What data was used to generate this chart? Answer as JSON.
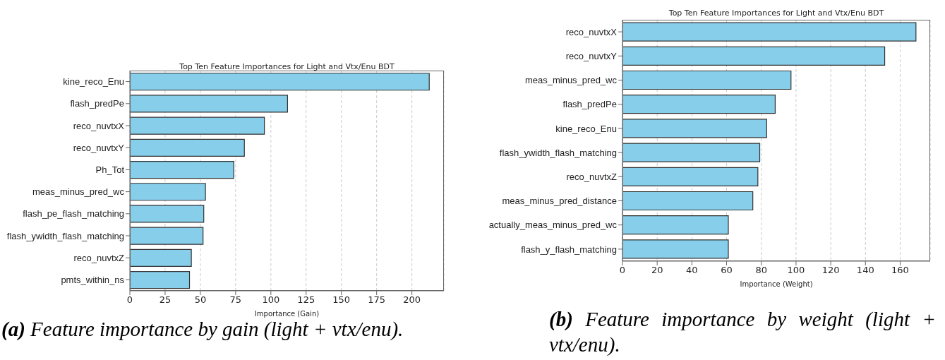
{
  "chart_data": [
    {
      "type": "bar",
      "orientation": "horizontal",
      "title": "Top Ten Feature Importances for Light and Vtx/Enu BDT",
      "xlabel": "Importance (Gain)",
      "categories": [
        "kine_reco_Enu",
        "flash_predPe",
        "reco_nuvtxX",
        "reco_nuvtxY",
        "Ph_Tot",
        "meas_minus_pred_wc",
        "flash_pe_flash_matching",
        "flash_ywidth_flash_matching",
        "reco_nuvtxZ",
        "pmts_within_ns"
      ],
      "values": [
        212.3,
        111.8,
        95.4,
        81.2,
        73.7,
        53.6,
        52.4,
        51.9,
        43.6,
        42.3
      ],
      "color": "#87ceeb",
      "xlim": [
        0,
        222.7
      ],
      "xticks": [
        0,
        25,
        50,
        75,
        100,
        125,
        150,
        175,
        200
      ],
      "grid": "x",
      "annotations": [
        "(a) Feature importance by gain (light + vtx/enu)."
      ]
    },
    {
      "type": "bar",
      "orientation": "horizontal",
      "title": "Top Ten Feature Importances for Light and Vtx/Enu BDT",
      "xlabel": "Importance (Weight)",
      "categories": [
        "reco_nuvtxX",
        "reco_nuvtxY",
        "meas_minus_pred_wc",
        "flash_predPe",
        "kine_reco_Enu",
        "flash_ywidth_flash_matching",
        "reco_nuvtxZ",
        "meas_minus_pred_distance",
        "actually_meas_minus_pred_wc",
        "flash_y_flash_matching"
      ],
      "values": [
        169.1,
        151.1,
        97.1,
        88,
        83.1,
        79.1,
        78,
        75.1,
        61,
        61
      ],
      "color": "#87ceeb",
      "xlim": [
        0,
        177.3
      ],
      "xticks": [
        0,
        20,
        40,
        60,
        80,
        100,
        120,
        140,
        160
      ],
      "grid": "x",
      "annotations": [
        "(b) Feature importance by weight (light + vtx/enu)."
      ]
    }
  ]
}
